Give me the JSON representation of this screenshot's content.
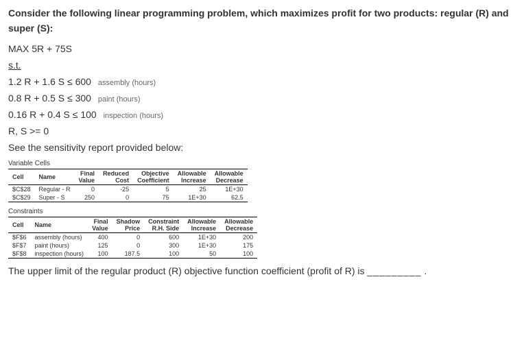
{
  "question": {
    "intro": "Consider the following linear programming problem, which maximizes profit for two products: regular (R) and super (S):",
    "objective": "MAX 5R + 75S",
    "stLabel": "s.t.",
    "constraints": [
      {
        "expr": "1.2 R + 1.6 S ≤ 600",
        "label": "assembly (hours)"
      },
      {
        "expr": "0.8 R + 0.5 S ≤ 300",
        "label": "paint (hours)"
      },
      {
        "expr": "0.16 R + 0.4 S ≤ 100",
        "label": "inspection (hours)"
      }
    ],
    "nonneg": "R, S  >= 0",
    "reportIntro": "See the sensitivity report provided below:"
  },
  "varTable": {
    "title": "Variable Cells",
    "headers": [
      "Cell",
      "Name",
      "Final Value",
      "Reduced Cost",
      "Objective Coefficient",
      "Allowable Increase",
      "Allowable Decrease"
    ],
    "rows": [
      {
        "cell": "$C$28",
        "name": "Regular - R",
        "final": "0",
        "reduced": "-25",
        "coef": "5",
        "inc": "25",
        "dec": "1E+30"
      },
      {
        "cell": "$C$29",
        "name": "Super - S",
        "final": "250",
        "reduced": "0",
        "coef": "75",
        "inc": "1E+30",
        "dec": "62.5"
      }
    ]
  },
  "constrTable": {
    "title": "Constraints",
    "headers": [
      "Cell",
      "Name",
      "Final Value",
      "Shadow Price",
      "Constraint R.H. Side",
      "Allowable Increase",
      "Allowable Decrease"
    ],
    "rows": [
      {
        "cell": "$F$6",
        "name": "assembly (hours)",
        "final": "400",
        "shadow": "0",
        "rhs": "600",
        "inc": "1E+30",
        "dec": "200"
      },
      {
        "cell": "$F$7",
        "name": "paint (hours)",
        "final": "125",
        "shadow": "0",
        "rhs": "300",
        "inc": "1E+30",
        "dec": "175"
      },
      {
        "cell": "$F$8",
        "name": "inspection (hours)",
        "final": "100",
        "shadow": "187.5",
        "rhs": "100",
        "inc": "50",
        "dec": "100"
      }
    ]
  },
  "answerPrompt": "The upper limit of the regular product (R) objective function coefficient (profit of R) is",
  "blank": "_________",
  "period": "."
}
